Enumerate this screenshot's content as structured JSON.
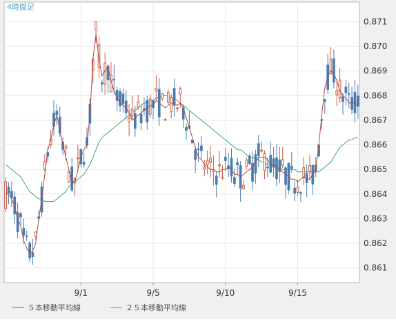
{
  "chart_data": {
    "type": "candlestick",
    "title": "4時間足",
    "colors": {
      "up": "#c75a44",
      "down": "#4a7cb0",
      "ma5": "#b34a3a",
      "ma25": "#3aa57a",
      "title": "#4aa3c8",
      "grid": "#e7e7e7",
      "axis": "#999999",
      "plot_bg": "#ffffff",
      "frame_bg": "#f0f0f0"
    },
    "y_ticks": [
      0.861,
      0.862,
      0.863,
      0.864,
      0.865,
      0.866,
      0.867,
      0.868,
      0.869,
      0.87,
      0.871
    ],
    "y_tick_labels": [
      "0.861",
      "0.862",
      "0.863",
      "0.864",
      "0.865",
      "0.866",
      "0.867",
      "0.868",
      "0.869",
      "0.870",
      "0.871"
    ],
    "ylim": [
      0.8604,
      0.8718
    ],
    "x_ticks": [
      {
        "label": "9/1",
        "index": 25
      },
      {
        "label": "9/5",
        "index": 49
      },
      {
        "label": "9/10",
        "index": 73
      },
      {
        "label": "9/15",
        "index": 97
      }
    ],
    "candle_count": 118,
    "ma5": [
      0.864,
      0.864,
      0.8638,
      0.8635,
      0.863,
      0.8627,
      0.8621,
      0.8618,
      0.8616,
      0.8617,
      0.862,
      0.863,
      0.8638,
      0.8648,
      0.8658,
      0.8662,
      0.8668,
      0.8672,
      0.8666,
      0.866,
      0.8655,
      0.865,
      0.8645,
      0.8645,
      0.865,
      0.8655,
      0.8658,
      0.866,
      0.8672,
      0.8695,
      0.8705,
      0.8695,
      0.8688,
      0.869,
      0.8692,
      0.8686,
      0.8682,
      0.8679,
      0.8677,
      0.8676,
      0.8675,
      0.8673,
      0.867,
      0.8671,
      0.8672,
      0.8673,
      0.8674,
      0.8675,
      0.8676,
      0.8676,
      0.8678,
      0.8677,
      0.8676,
      0.8675,
      0.8676,
      0.8677,
      0.8677,
      0.8676,
      0.8677,
      0.8675,
      0.8671,
      0.8667,
      0.8663,
      0.8659,
      0.8655,
      0.8654,
      0.8652,
      0.8651,
      0.865,
      0.865,
      0.8649,
      0.8649,
      0.865,
      0.865,
      0.8651,
      0.865,
      0.8648,
      0.8648,
      0.8647,
      0.8648,
      0.8649,
      0.865,
      0.8651,
      0.8653,
      0.8655,
      0.8655,
      0.8655,
      0.8654,
      0.8652,
      0.8652,
      0.8651,
      0.865,
      0.8649,
      0.8648,
      0.8647,
      0.8646,
      0.8646,
      0.8645,
      0.8646,
      0.8647,
      0.8646,
      0.8646,
      0.8648,
      0.865,
      0.866,
      0.8672,
      0.8683,
      0.8688,
      0.869,
      0.8689,
      0.8686,
      0.8682,
      0.868,
      0.8679,
      0.8677,
      0.8677,
      0.8677,
      0.8676
    ],
    "ma25": [
      0.8652,
      0.8651,
      0.865,
      0.8649,
      0.8648,
      0.8647,
      0.8645,
      0.8643,
      0.8641,
      0.864,
      0.8639,
      0.8638,
      0.8638,
      0.8637,
      0.8637,
      0.8637,
      0.8637,
      0.8638,
      0.8639,
      0.864,
      0.8641,
      0.8643,
      0.8644,
      0.8645,
      0.8646,
      0.8647,
      0.8648,
      0.865,
      0.8652,
      0.8655,
      0.8658,
      0.8661,
      0.8663,
      0.8664,
      0.8665,
      0.8666,
      0.8667,
      0.8668,
      0.8669,
      0.867,
      0.8671,
      0.8672,
      0.8673,
      0.8674,
      0.8675,
      0.8676,
      0.8677,
      0.8677,
      0.8678,
      0.8678,
      0.8679,
      0.8679,
      0.868,
      0.868,
      0.868,
      0.8679,
      0.8679,
      0.8678,
      0.8677,
      0.8676,
      0.8675,
      0.8674,
      0.8673,
      0.8672,
      0.8671,
      0.867,
      0.8669,
      0.8668,
      0.8667,
      0.8666,
      0.8665,
      0.8664,
      0.8663,
      0.8662,
      0.8661,
      0.866,
      0.8659,
      0.8658,
      0.8658,
      0.8657,
      0.8656,
      0.8655,
      0.8655,
      0.8654,
      0.8654,
      0.8653,
      0.8653,
      0.8652,
      0.8652,
      0.8651,
      0.8651,
      0.8651,
      0.865,
      0.865,
      0.865,
      0.865,
      0.865,
      0.8649,
      0.8649,
      0.8649,
      0.8649,
      0.8649,
      0.8649,
      0.8649,
      0.8649,
      0.865,
      0.8651,
      0.8652,
      0.8653,
      0.8655,
      0.8657,
      0.8659,
      0.866,
      0.8661,
      0.8662,
      0.8662,
      0.8663,
      0.8663
    ],
    "legend": [
      {
        "label": "５本移動平均線",
        "color": "#b34a3a"
      },
      {
        "label": "２５本移動平均線",
        "color": "#3aa57a"
      }
    ]
  }
}
